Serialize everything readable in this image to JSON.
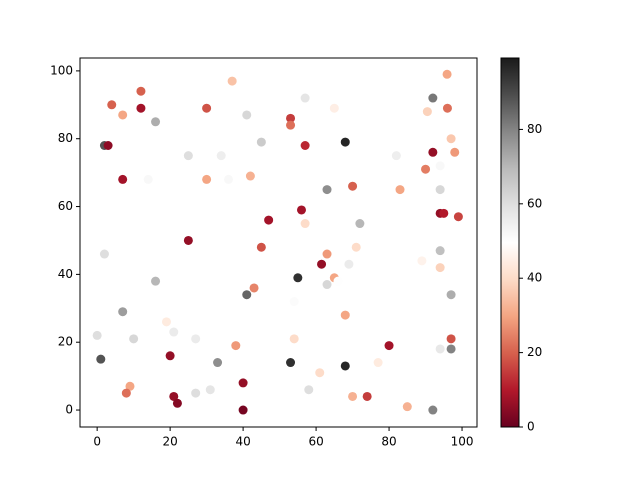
{
  "chart_data": {
    "type": "scatter",
    "x": [
      95.9,
      37,
      12,
      4,
      12,
      30,
      57,
      65,
      92,
      96,
      90.5,
      7,
      41,
      53,
      53,
      16,
      97,
      45,
      68,
      2,
      3,
      57,
      98,
      92,
      25,
      34,
      82,
      94,
      90,
      7,
      14,
      30,
      36,
      42,
      70,
      83,
      63,
      94,
      56,
      94,
      95,
      99,
      47,
      72,
      57,
      25,
      45,
      71,
      94,
      2,
      63,
      61.5,
      69,
      89,
      94,
      55,
      65,
      16,
      63,
      66,
      43,
      41,
      97,
      54,
      7,
      68,
      19,
      21,
      0,
      10,
      27,
      54,
      97,
      38,
      80,
      20,
      1,
      94,
      97,
      33,
      53,
      77,
      68,
      61,
      9,
      8,
      27,
      31,
      58,
      40,
      21,
      22,
      70,
      74,
      85,
      92,
      40
    ],
    "y": [
      99,
      97,
      94,
      90,
      89,
      89,
      92,
      89,
      92,
      89,
      88,
      87,
      87,
      86,
      84,
      85,
      80,
      79,
      79,
      78,
      78,
      78,
      76,
      76,
      75,
      75,
      75,
      72,
      71,
      68,
      68,
      68,
      68,
      69,
      66,
      65,
      65,
      65,
      59,
      58,
      58,
      57,
      56,
      55,
      55,
      50,
      48,
      48,
      47,
      46,
      46,
      43,
      43,
      44,
      42,
      39,
      39,
      38,
      37,
      38,
      36,
      34,
      34,
      32,
      29,
      28,
      26,
      23,
      22,
      21,
      21,
      21,
      21,
      19,
      19,
      16,
      15,
      18,
      18,
      14,
      14,
      14,
      13,
      11,
      7,
      5,
      5,
      6,
      6,
      8,
      4,
      2,
      4,
      4,
      1,
      0,
      0
    ],
    "c": [
      30,
      35,
      20,
      20,
      8,
      18,
      58,
      45,
      82,
      22,
      38,
      30,
      62,
      15,
      22,
      72,
      36,
      65,
      97,
      88,
      5,
      12,
      28,
      6,
      60,
      55,
      55,
      52,
      24,
      8,
      52,
      30,
      52,
      32,
      20,
      30,
      78,
      62,
      8,
      6,
      10,
      16,
      8,
      70,
      40,
      6,
      18,
      40,
      68,
      60,
      28,
      6,
      56,
      46,
      38,
      95,
      30,
      70,
      62,
      50,
      25,
      85,
      72,
      51,
      75,
      30,
      44,
      56,
      60,
      62,
      56,
      40,
      18,
      28,
      8,
      6,
      88,
      57,
      80,
      78,
      95,
      44,
      97,
      40,
      30,
      22,
      60,
      58,
      60,
      6,
      6,
      4,
      32,
      15,
      32,
      80,
      2
    ],
    "xlim": [
      -4.7,
      104.1
    ],
    "ylim": [
      -5,
      103.8
    ],
    "xticks": [
      0,
      20,
      40,
      60,
      80,
      100
    ],
    "yticks": [
      0,
      20,
      40,
      60,
      80,
      100
    ],
    "clim": [
      0,
      99.2
    ],
    "cticks": [
      0,
      20,
      40,
      60,
      80
    ],
    "colormap": [
      "#67001f",
      "#b2182b",
      "#d6604d",
      "#f4a582",
      "#fddbc7",
      "#ffffff",
      "#e0e0e0",
      "#bababa",
      "#878787",
      "#4d4d4d",
      "#1a1a1a"
    ]
  }
}
